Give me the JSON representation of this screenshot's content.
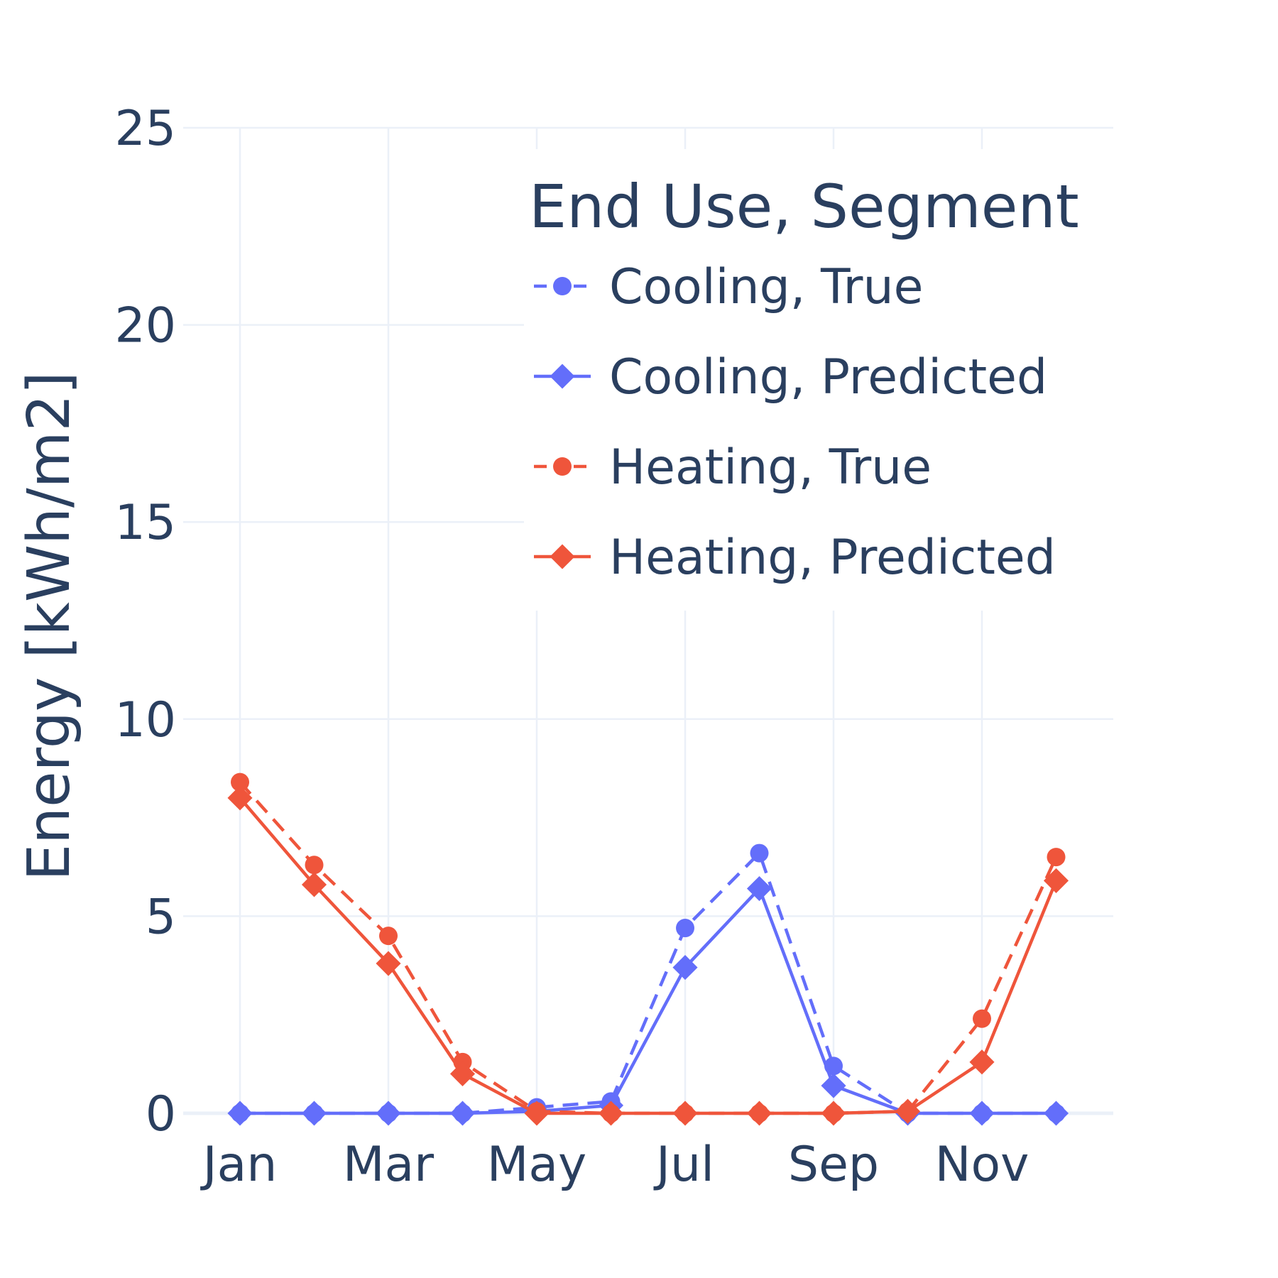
{
  "chart_data": {
    "type": "line",
    "x": [
      "2000-01-01",
      "2000-02-01",
      "2000-03-01",
      "2000-04-01",
      "2000-05-01",
      "2000-06-01",
      "2000-07-01",
      "2000-08-01",
      "2000-09-01",
      "2000-10-01",
      "2000-11-01",
      "2000-12-01"
    ],
    "x_tick_labels": [
      "Jan",
      "Mar",
      "May",
      "Jul",
      "Sep",
      "Nov"
    ],
    "y_tick_labels": [
      "0",
      "5",
      "10",
      "15",
      "20",
      "25"
    ],
    "ylabel": "Energy [kWh/m2]",
    "ylim": [
      0,
      25
    ],
    "grid": true,
    "legend": {
      "title": "End Use, Segment",
      "position": "top-right"
    },
    "series": [
      {
        "name": "Cooling, True",
        "color": "#636efa",
        "dash": "dash",
        "marker": "circle",
        "values": [
          0,
          0,
          0,
          0,
          0.15,
          0.3,
          4.7,
          6.6,
          1.2,
          0,
          0,
          0
        ]
      },
      {
        "name": "Cooling, Predicted",
        "color": "#636efa",
        "dash": "solid",
        "marker": "diamond",
        "values": [
          0,
          0,
          0,
          0,
          0.05,
          0.2,
          3.7,
          5.7,
          0.7,
          0,
          0,
          0
        ]
      },
      {
        "name": "Heating, True",
        "color": "#ef553b",
        "dash": "dash",
        "marker": "circle",
        "values": [
          8.4,
          6.3,
          4.5,
          1.3,
          0.05,
          0,
          0,
          0,
          0,
          0.05,
          2.4,
          6.5
        ]
      },
      {
        "name": "Heating, Predicted",
        "color": "#ef553b",
        "dash": "solid",
        "marker": "diamond",
        "values": [
          8.0,
          5.8,
          3.8,
          1.0,
          0,
          0,
          0,
          0,
          0,
          0.05,
          1.3,
          5.9
        ]
      }
    ]
  }
}
